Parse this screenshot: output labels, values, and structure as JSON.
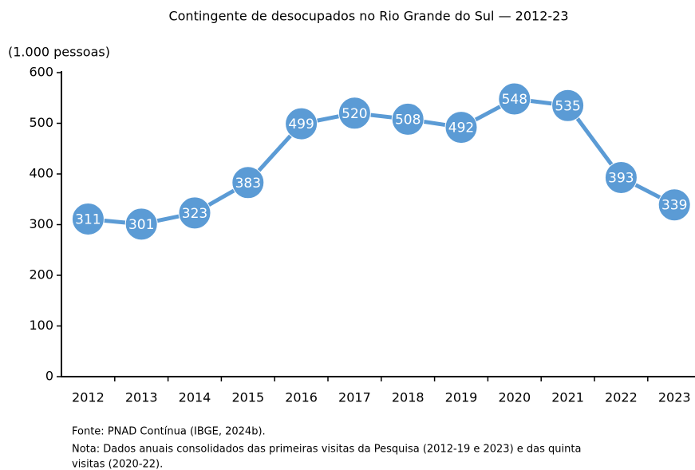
{
  "chart_data": {
    "type": "line",
    "title": "Contingente de desocupados no Rio Grande do Sul — 2012-23",
    "y_label": "(1.000 pessoas)",
    "categories": [
      "2012",
      "2013",
      "2014",
      "2015",
      "2016",
      "2017",
      "2018",
      "2019",
      "2020",
      "2021",
      "2022",
      "2023"
    ],
    "values": [
      311,
      301,
      323,
      383,
      499,
      520,
      508,
      492,
      548,
      535,
      393,
      339
    ],
    "color": "#5b9bd5",
    "ylim": [
      0,
      600
    ],
    "yticks": [
      0,
      100,
      200,
      300,
      400,
      500,
      600
    ],
    "grid": false,
    "source": "Fonte: PNAD Contínua (IBGE, 2024b).",
    "note": [
      "Nota: Dados anuais consolidados das primeiras visitas da Pesquisa (2012-19 e 2023) e das quinta",
      "visitas (2020-22)."
    ]
  }
}
